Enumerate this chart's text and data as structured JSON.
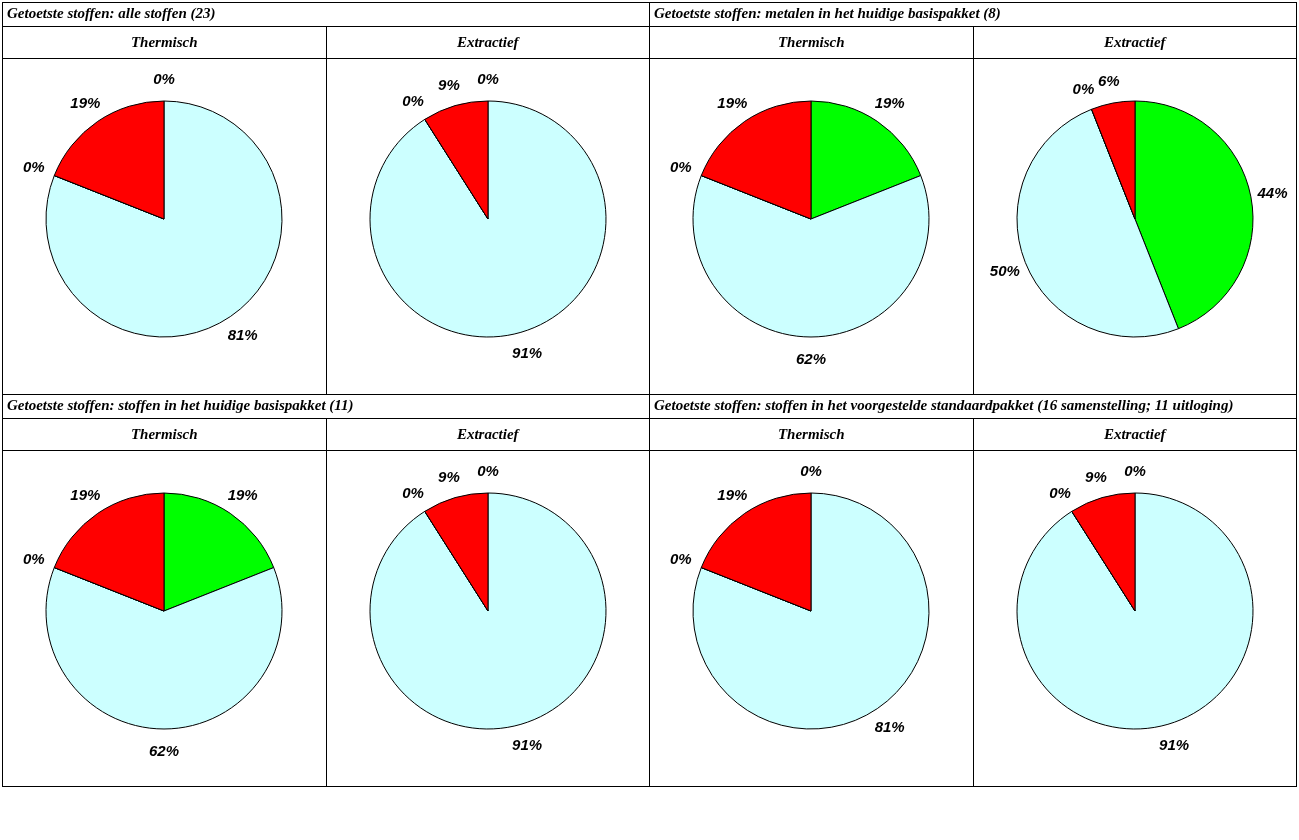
{
  "chart_data": [
    {
      "type": "pie",
      "title": "Thermisch",
      "annotations": [
        "Getoetste stoffen: alle stoffen (23)"
      ],
      "categories": [
        null,
        null,
        null,
        null
      ],
      "values": [
        0,
        81,
        0,
        19
      ],
      "colors": [
        "#00ff00",
        "#ccffff",
        "#ffff00",
        "#ff0000"
      ],
      "value_labels": [
        "0%",
        "81%",
        "0%",
        "19%"
      ]
    },
    {
      "type": "pie",
      "title": "Extractief",
      "categories": [
        null,
        null,
        null,
        null
      ],
      "values": [
        0,
        91,
        0,
        9
      ],
      "colors": [
        "#00ff00",
        "#ccffff",
        "#ffff00",
        "#ff0000"
      ],
      "value_labels": [
        "0%",
        "91%",
        "0%",
        "9%"
      ]
    },
    {
      "type": "pie",
      "title": "Thermisch",
      "annotations": [
        "Getoetste stoffen: metalen in het huidige basispakket (8)"
      ],
      "categories": [
        null,
        null,
        null,
        null
      ],
      "values": [
        19,
        62,
        0,
        19
      ],
      "colors": [
        "#00ff00",
        "#ccffff",
        "#ffff00",
        "#ff0000"
      ],
      "value_labels": [
        "19%",
        "62%",
        "0%",
        "19%"
      ]
    },
    {
      "type": "pie",
      "title": "Extractief",
      "categories": [
        null,
        null,
        null,
        null
      ],
      "values": [
        44,
        50,
        0,
        6
      ],
      "colors": [
        "#00ff00",
        "#ccffff",
        "#ffff00",
        "#ff0000"
      ],
      "value_labels": [
        "44%",
        "50%",
        "0%",
        "6%"
      ]
    },
    {
      "type": "pie",
      "title": "Thermisch",
      "annotations": [
        "Getoetste stoffen: stoffen in het huidige basispakket (11)"
      ],
      "categories": [
        null,
        null,
        null,
        null
      ],
      "values": [
        19,
        62,
        0,
        19
      ],
      "colors": [
        "#00ff00",
        "#ccffff",
        "#ffff00",
        "#ff0000"
      ],
      "value_labels": [
        "19%",
        "62%",
        "0%",
        "19%"
      ]
    },
    {
      "type": "pie",
      "title": "Extractief",
      "categories": [
        null,
        null,
        null,
        null
      ],
      "values": [
        0,
        91,
        0,
        9
      ],
      "colors": [
        "#00ff00",
        "#ccffff",
        "#ffff00",
        "#ff0000"
      ],
      "value_labels": [
        "0%",
        "91%",
        "0%",
        "9%"
      ]
    },
    {
      "type": "pie",
      "title": "Thermisch",
      "annotations": [
        "Getoetste stoffen: stoffen in het voorgestelde standaardpakket (16 samenstelling; 11 uitloging)"
      ],
      "categories": [
        null,
        null,
        null,
        null
      ],
      "values": [
        0,
        81,
        0,
        19
      ],
      "colors": [
        "#00ff00",
        "#ccffff",
        "#ffff00",
        "#ff0000"
      ],
      "value_labels": [
        "0%",
        "81%",
        "0%",
        "19%"
      ]
    },
    {
      "type": "pie",
      "title": "Extractief",
      "categories": [
        null,
        null,
        null,
        null
      ],
      "values": [
        0,
        91,
        0,
        9
      ],
      "colors": [
        "#00ff00",
        "#ccffff",
        "#ffff00",
        "#ff0000"
      ],
      "value_labels": [
        "0%",
        "91%",
        "0%",
        "9%"
      ]
    }
  ]
}
